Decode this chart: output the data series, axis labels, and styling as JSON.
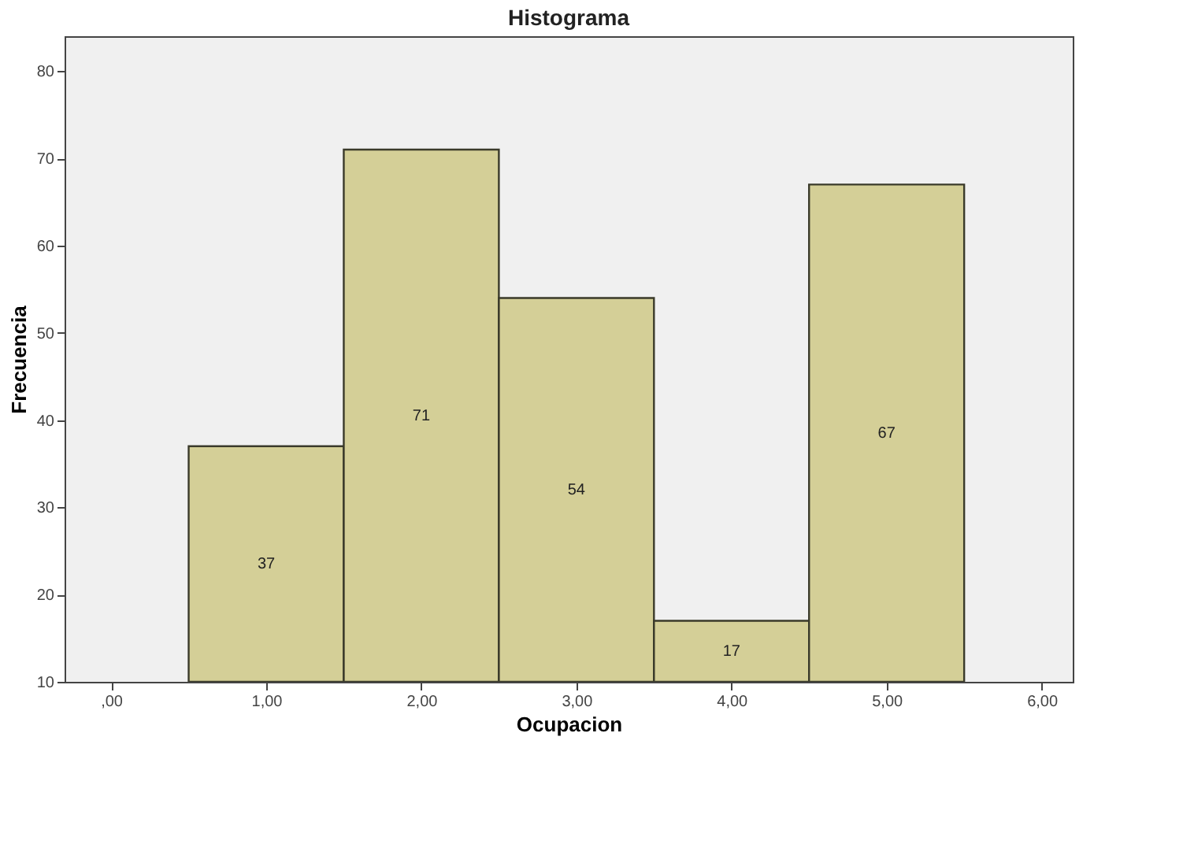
{
  "chart_data": {
    "type": "histogram",
    "title": "Histograma",
    "xlabel": "Ocupacion",
    "ylabel": "Frecuencia",
    "bins": [
      0.5,
      1.5,
      2.5,
      3.5,
      4.5,
      5.5
    ],
    "values": [
      37,
      71,
      54,
      17,
      67
    ],
    "color": "#d4cf97",
    "data_labels": true,
    "xlim": [
      -0.3,
      6.2
    ],
    "xticks": [
      {
        "value": 0,
        "label": ",00"
      },
      {
        "value": 1,
        "label": "1,00"
      },
      {
        "value": 2,
        "label": "2,00"
      },
      {
        "value": 3,
        "label": "3,00"
      },
      {
        "value": 4,
        "label": "4,00"
      },
      {
        "value": 5,
        "label": "5,00"
      },
      {
        "value": 6,
        "label": "6,00"
      }
    ],
    "ylim": [
      10,
      84
    ],
    "yticks": [
      10,
      20,
      30,
      40,
      50,
      60,
      70,
      80
    ],
    "grid": false
  }
}
